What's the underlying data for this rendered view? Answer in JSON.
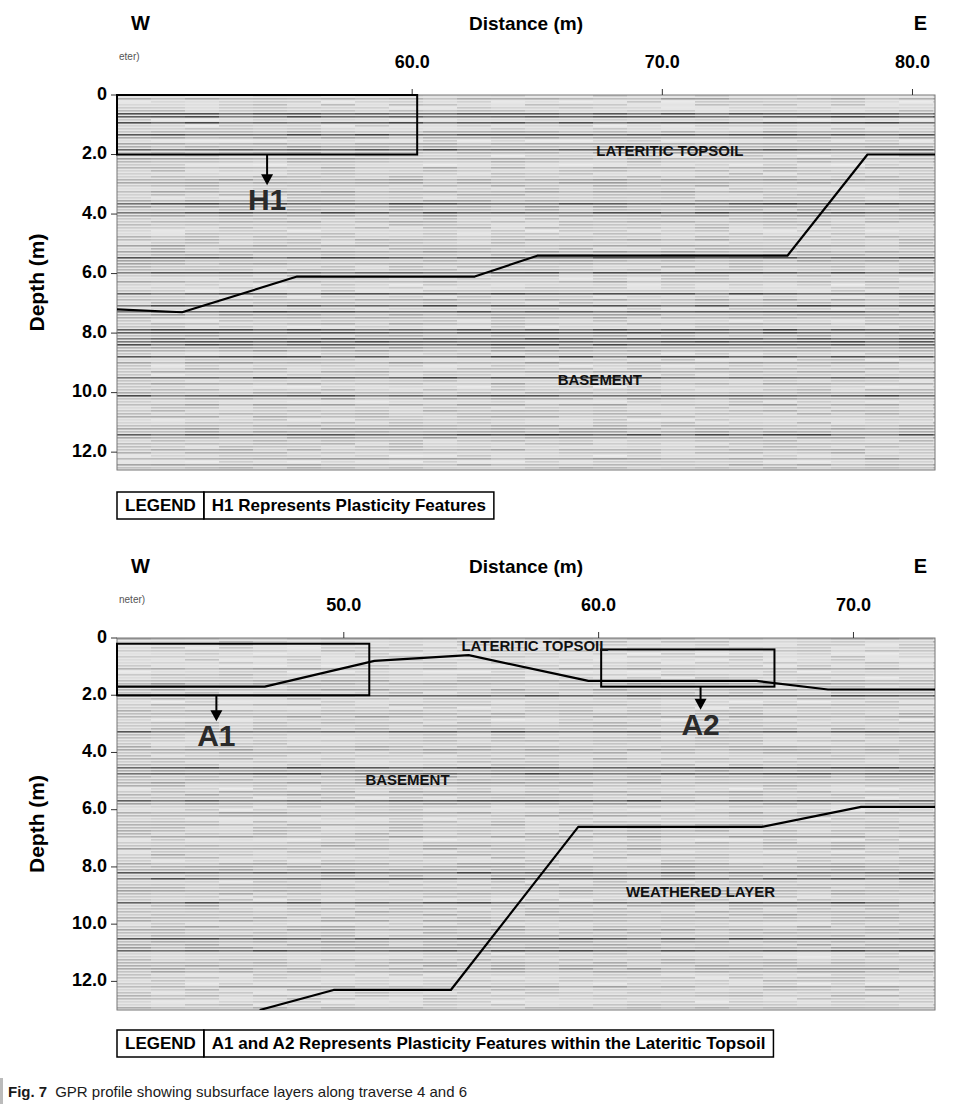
{
  "chart_data": [
    {
      "type": "line",
      "grid": false,
      "x_label": "Distance (m)",
      "y_label": "Depth (m)",
      "x_start_label": "W",
      "x_end_label": "E",
      "x_unit_fragment": "eter)",
      "xlim": [
        48.2,
        80.9
      ],
      "xticks": [
        {
          "value": 60,
          "label": "60.0"
        },
        {
          "value": 70,
          "label": "70.0"
        },
        {
          "value": 80,
          "label": "80.0"
        }
      ],
      "ylim": [
        0,
        12.6
      ],
      "yticks": [
        0,
        {
          "value": 2,
          "label": "2.0"
        },
        {
          "value": 4,
          "label": "4.0"
        },
        {
          "value": 6,
          "label": "6.0"
        },
        {
          "value": 8,
          "label": "8.0"
        },
        {
          "value": 10,
          "label": "10.0"
        },
        {
          "value": 12,
          "label": "12.0"
        }
      ],
      "series": [
        {
          "color": "#000000",
          "x": [
            48.2,
            50.8,
            55.4,
            62.5,
            65.0,
            75.0,
            78.2,
            80.9
          ],
          "values": [
            7.2,
            7.3,
            6.1,
            6.1,
            5.4,
            5.4,
            2.0,
            2.0
          ]
        }
      ],
      "annotations": [
        {
          "text": "H1",
          "x": 54.2,
          "y": 3.6,
          "box_x": [
            48.2,
            60.2
          ],
          "box_y": [
            0,
            2.0
          ]
        },
        {
          "text": "LATERITIC TOPSOIL",
          "x": 70.3,
          "y": 1.9
        },
        {
          "text": "BASEMENT",
          "x": 67.5,
          "y": 9.6
        }
      ],
      "key": {
        "label": "LEGEND",
        "text": "H1 Represents Plasticity Features"
      }
    },
    {
      "type": "line",
      "grid": false,
      "x_label": "Distance (m)",
      "y_label": "Depth (m)",
      "x_start_label": "W",
      "x_end_label": "E",
      "x_unit_fragment": "neter)",
      "xlim": [
        41.1,
        73.2
      ],
      "xticks": [
        {
          "value": 50,
          "label": "50.0"
        },
        {
          "value": 60,
          "label": "60.0"
        },
        {
          "value": 70,
          "label": "70.0"
        }
      ],
      "ylim": [
        0,
        13
      ],
      "yticks": [
        0,
        {
          "value": 2,
          "label": "2.0"
        },
        {
          "value": 4,
          "label": "4.0"
        },
        {
          "value": 6,
          "label": "6.0"
        },
        {
          "value": 8,
          "label": "8.0"
        },
        {
          "value": 10,
          "label": "10.0"
        },
        {
          "value": 12,
          "label": "12.0"
        }
      ],
      "series": [
        {
          "color": "#000000",
          "x": [
            41.1,
            46.9,
            51.2,
            54.9,
            59.6,
            66.2,
            69.0,
            73.2
          ],
          "values": [
            1.7,
            1.7,
            0.8,
            0.6,
            1.5,
            1.5,
            1.8,
            1.8
          ]
        },
        {
          "color": "#000000",
          "x": [
            46.7,
            49.6,
            54.2,
            59.2,
            66.4,
            70.3,
            73.2
          ],
          "values": [
            13.0,
            12.3,
            12.3,
            6.6,
            6.6,
            5.9,
            5.9
          ]
        }
      ],
      "annotations": [
        {
          "text": "A1",
          "x": 45.0,
          "y": 3.5,
          "box_x": [
            41.1,
            51.0
          ],
          "box_y": [
            0.2,
            2.0
          ]
        },
        {
          "text": "A2",
          "x": 64.0,
          "y": 3.1,
          "box_x": [
            60.1,
            66.9
          ],
          "box_y": [
            0.4,
            1.7
          ]
        },
        {
          "text": "LATERITIC TOPSOIL",
          "x": 57.5,
          "y": 0.3
        },
        {
          "text": "BASEMENT",
          "x": 52.5,
          "y": 5.0
        },
        {
          "text": "WEATHERED LAYER",
          "x": 64.0,
          "y": 8.9
        }
      ],
      "key": {
        "label": "LEGEND",
        "text": "A1 and A2 Represents Plasticity Features within the Lateritic Topsoil"
      }
    }
  ],
  "caption": {
    "label": "Fig. 7",
    "text": "GPR profile showing subsurface layers along traverse 4 and 6"
  }
}
